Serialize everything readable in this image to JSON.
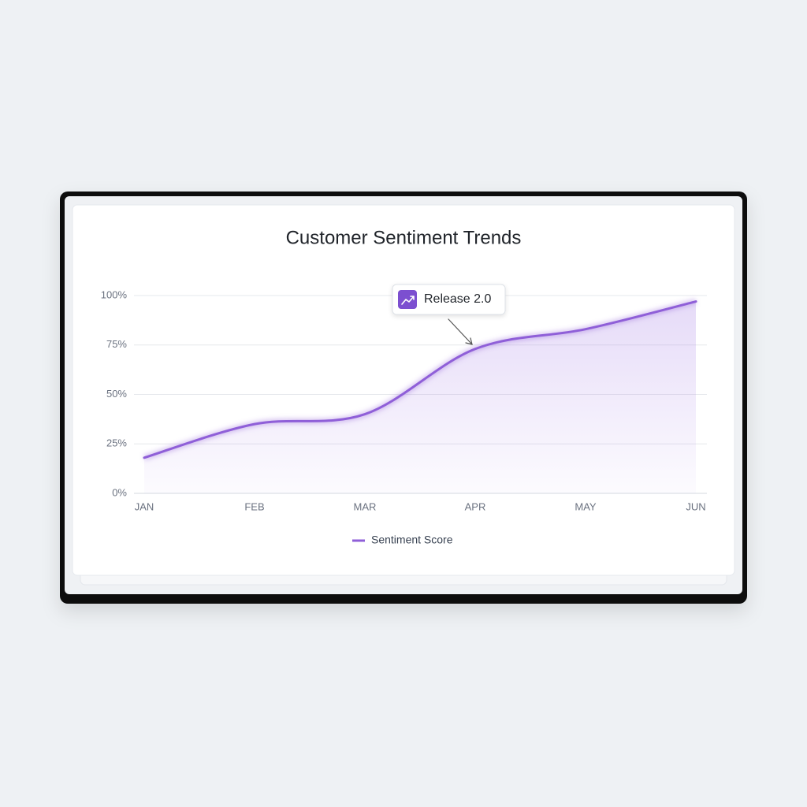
{
  "chart_data": {
    "type": "line",
    "title": "Customer Sentiment Trends",
    "categories": [
      "JAN",
      "FEB",
      "MAR",
      "APR",
      "MAY",
      "JUN"
    ],
    "series": [
      {
        "name": "Sentiment Score",
        "color": "#8f5fd8",
        "values": [
          18,
          35,
          40,
          73,
          83,
          97
        ]
      }
    ],
    "ylim": [
      0,
      100
    ],
    "yticks": [
      {
        "value": 0,
        "label": "0%"
      },
      {
        "value": 25,
        "label": "25%"
      },
      {
        "value": 50,
        "label": "50%"
      },
      {
        "value": 75,
        "label": "75%"
      },
      {
        "value": 100,
        "label": "100%"
      }
    ],
    "grid": true,
    "annotation": "Release 2.0"
  }
}
